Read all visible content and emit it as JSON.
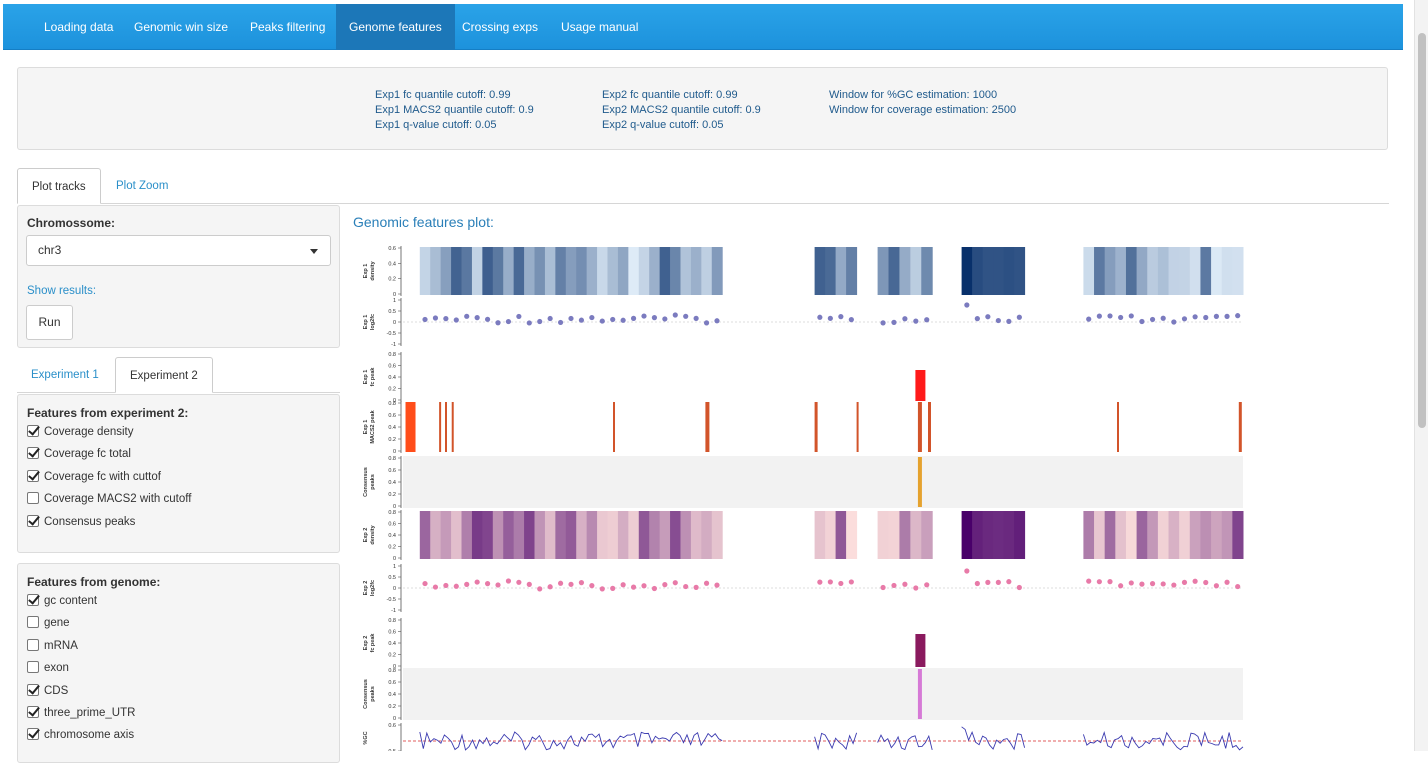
{
  "nav": {
    "items": [
      "Loading data",
      "Genomic win size",
      "Peaks filtering",
      "Genome features",
      "Crossing exps",
      "Usage manual"
    ],
    "active_index": 3
  },
  "info": {
    "exp1_fc": "Exp1 fc quantile cutoff: 0.99",
    "exp1_macs2": "Exp1 MACS2 quantile cutoff: 0.9",
    "exp1_q": "Exp1 q-value cutoff: 0.05",
    "exp2_fc": "Exp2 fc quantile cutoff: 0.99",
    "exp2_macs2": "Exp2 MACS2 quantile cutoff: 0.9",
    "exp2_q": "Exp2 q-value cutoff: 0.05",
    "gc_window": "Window for %GC estimation: 1000",
    "cov_window": "Window for coverage estimation: 2500"
  },
  "main_tabs": [
    "Plot tracks",
    "Plot Zoom"
  ],
  "chromosome": {
    "label": "Chromossome:",
    "value": "chr3"
  },
  "show_results": "Show results:",
  "run_label": "Run",
  "exp_tabs": [
    "Experiment 1",
    "Experiment 2"
  ],
  "features_exp": {
    "title": "Features from experiment 2:",
    "items": [
      {
        "label": "Coverage density",
        "checked": true
      },
      {
        "label": "Coverage fc total",
        "checked": true
      },
      {
        "label": "Coverage fc with cuttof",
        "checked": true
      },
      {
        "label": "Coverage MACS2 with cutoff",
        "checked": false
      },
      {
        "label": "Consensus peaks",
        "checked": true
      }
    ]
  },
  "features_genome": {
    "title": "Features from genome:",
    "items": [
      {
        "label": "gc content",
        "checked": true
      },
      {
        "label": "gene",
        "checked": false
      },
      {
        "label": "mRNA",
        "checked": false
      },
      {
        "label": "exon",
        "checked": false
      },
      {
        "label": "CDS",
        "checked": true
      },
      {
        "label": "three_prime_UTR",
        "checked": true
      },
      {
        "label": "chromosome axis",
        "checked": true
      }
    ]
  },
  "plot": {
    "title": "Genomic features plot:",
    "track_labels": [
      "Exp 1\ndensity",
      "Exp 1\nlog2fc",
      "Exp 1\nfc peak",
      "Exp 1\nMACS2 peak",
      "Consensus\npeaks",
      "Exp 2\ndensity",
      "Exp 2\nlog2fc",
      "Exp 2\nfc peak",
      "Consensus\npeaks",
      "%GC"
    ],
    "ticks": {
      "density1": [
        "0.6",
        "0.4",
        "0.2",
        "0"
      ],
      "log2fc": [
        "1",
        "0.5",
        "0",
        "-0.5",
        "-1"
      ],
      "peak": [
        "0.8",
        "0.6",
        "0.4",
        "0.2",
        "0"
      ],
      "density2": [
        "0.8",
        "0.6",
        "0.4",
        "0.2",
        "0"
      ],
      "gc": [
        "0.6",
        "0.5"
      ]
    },
    "colors": {
      "blue_dark": "#08306b",
      "blue_light": "#deebf7",
      "pink_dark": "#49006a",
      "pink_light": "#fde0dd",
      "dot1": "#7b7bbf",
      "dot2": "#e87aa8",
      "red_peak": "#ff1a1a",
      "macs_peak": "#d2542a",
      "consensus1": "#e5a22e",
      "fc2_peak": "#8a1a5e",
      "consensus2": "#d67ad6",
      "gc_line": "#3b3bb0",
      "gc_ref": "#d62728"
    }
  }
}
